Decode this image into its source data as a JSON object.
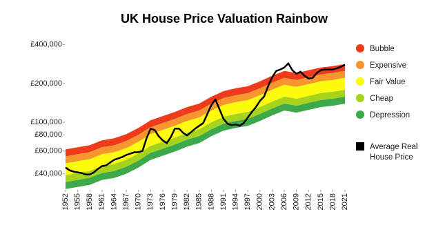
{
  "chart_data": {
    "type": "area",
    "title": "UK House Price Valuation Rainbow",
    "log_scale": true,
    "grid": false,
    "legend_position": "right",
    "x": [
      1952,
      1955,
      1958,
      1961,
      1964,
      1967,
      1970,
      1973,
      1976,
      1979,
      1982,
      1985,
      1988,
      1991,
      1994,
      1997,
      2000,
      2003,
      2006,
      2009,
      2012,
      2015,
      2018,
      2021
    ],
    "band_floor": [
      30500,
      31600,
      32800,
      35800,
      37100,
      40000,
      44700,
      51200,
      55200,
      59400,
      64800,
      69000,
      78100,
      86200,
      90500,
      94000,
      102500,
      113200,
      123400,
      118900,
      124900,
      131300,
      134500,
      139600
    ],
    "series": [
      {
        "name": "Bubble",
        "type": "area",
        "color": "#ee3b1c",
        "values": [
          61700,
          64100,
          66500,
          72500,
          75200,
          81000,
          90600,
          103800,
          111800,
          120400,
          131300,
          139700,
          158100,
          174500,
          183400,
          190400,
          207600,
          229200,
          249900,
          240800,
          253000,
          265900,
          272500,
          282800
        ]
      },
      {
        "name": "Expensive",
        "type": "area",
        "color": "#f7962f",
        "values": [
          54500,
          56600,
          58800,
          64100,
          66400,
          71600,
          80000,
          91700,
          98800,
          106400,
          116000,
          123400,
          139700,
          154200,
          162000,
          168200,
          183400,
          202500,
          220800,
          212700,
          223500,
          234900,
          240800,
          249900
        ]
      },
      {
        "name": "Fair Value",
        "type": "area",
        "color": "#fcfc0c",
        "values": [
          48200,
          50000,
          51900,
          56600,
          58700,
          63200,
          70700,
          81000,
          87300,
          94000,
          102500,
          109100,
          123400,
          136200,
          143200,
          148600,
          162100,
          178900,
          195100,
          188000,
          197500,
          207600,
          212700,
          220800
        ]
      },
      {
        "name": "Cheap",
        "type": "area",
        "color": "#a6d41c",
        "values": [
          39000,
          40500,
          42100,
          45800,
          47600,
          51200,
          57300,
          65600,
          70700,
          76100,
          83000,
          88300,
          100000,
          110400,
          116000,
          120400,
          131300,
          144900,
          158000,
          152300,
          160000,
          168200,
          172300,
          178800
        ]
      },
      {
        "name": "Depression",
        "type": "area",
        "color": "#3ea94b",
        "values": [
          34500,
          35800,
          37200,
          40500,
          42000,
          45300,
          50600,
          58000,
          62500,
          67300,
          73400,
          78100,
          88300,
          97500,
          102500,
          106400,
          116000,
          128100,
          139600,
          134600,
          141400,
          148600,
          152300,
          158000
        ]
      },
      {
        "name": "Average Real House Price",
        "type": "line",
        "color": "#000000",
        "x": [
          1952,
          1953,
          1954,
          1955,
          1956,
          1957,
          1958,
          1959,
          1960,
          1961,
          1962,
          1963,
          1964,
          1965,
          1966,
          1967,
          1968,
          1969,
          1970,
          1971,
          1972,
          1973,
          1974,
          1975,
          1976,
          1977,
          1978,
          1979,
          1980,
          1981,
          1982,
          1983,
          1984,
          1985,
          1986,
          1987,
          1988,
          1989,
          1990,
          1991,
          1992,
          1993,
          1994,
          1995,
          1996,
          1997,
          1998,
          1999,
          2000,
          2001,
          2002,
          2003,
          2004,
          2005,
          2006,
          2007,
          2008,
          2009,
          2010,
          2011,
          2012,
          2013,
          2014,
          2015,
          2016,
          2017,
          2018,
          2019,
          2020,
          2021
        ],
        "values": [
          44700,
          42500,
          41500,
          41000,
          40500,
          39500,
          39500,
          41000,
          43600,
          45900,
          46400,
          48800,
          51300,
          52600,
          53900,
          55900,
          57300,
          58700,
          58700,
          60200,
          75200,
          89400,
          87200,
          78100,
          72500,
          69000,
          77100,
          89400,
          89400,
          83000,
          79100,
          84100,
          89400,
          94000,
          98800,
          116000,
          136200,
          150400,
          126500,
          106400,
          97600,
          95200,
          96400,
          94000,
          98800,
          109100,
          120400,
          131300,
          146800,
          158100,
          190400,
          223500,
          249900,
          256300,
          265900,
          286300,
          253000,
          237800,
          246800,
          229200,
          218200,
          220800,
          240800,
          253000,
          256300,
          256300,
          256300,
          262600,
          269200,
          279300
        ]
      }
    ],
    "xlim": [
      1952,
      2022
    ],
    "xticks": [
      1952,
      1955,
      1958,
      1961,
      1964,
      1967,
      1970,
      1973,
      1976,
      1979,
      1982,
      1985,
      1988,
      1991,
      1994,
      1997,
      2000,
      2003,
      2006,
      2009,
      2012,
      2015,
      2018,
      2021
    ],
    "ylim": [
      30000,
      450000
    ],
    "yticks": [
      {
        "value": 40000,
        "label": "£40,000"
      },
      {
        "value": 60000,
        "label": "£60,000"
      },
      {
        "value": 80000,
        "label": "£80,000"
      },
      {
        "value": 100000,
        "label": "£100,000"
      },
      {
        "value": 200000,
        "label": "£200,000"
      },
      {
        "value": 400000,
        "label": "£400,000"
      }
    ]
  }
}
